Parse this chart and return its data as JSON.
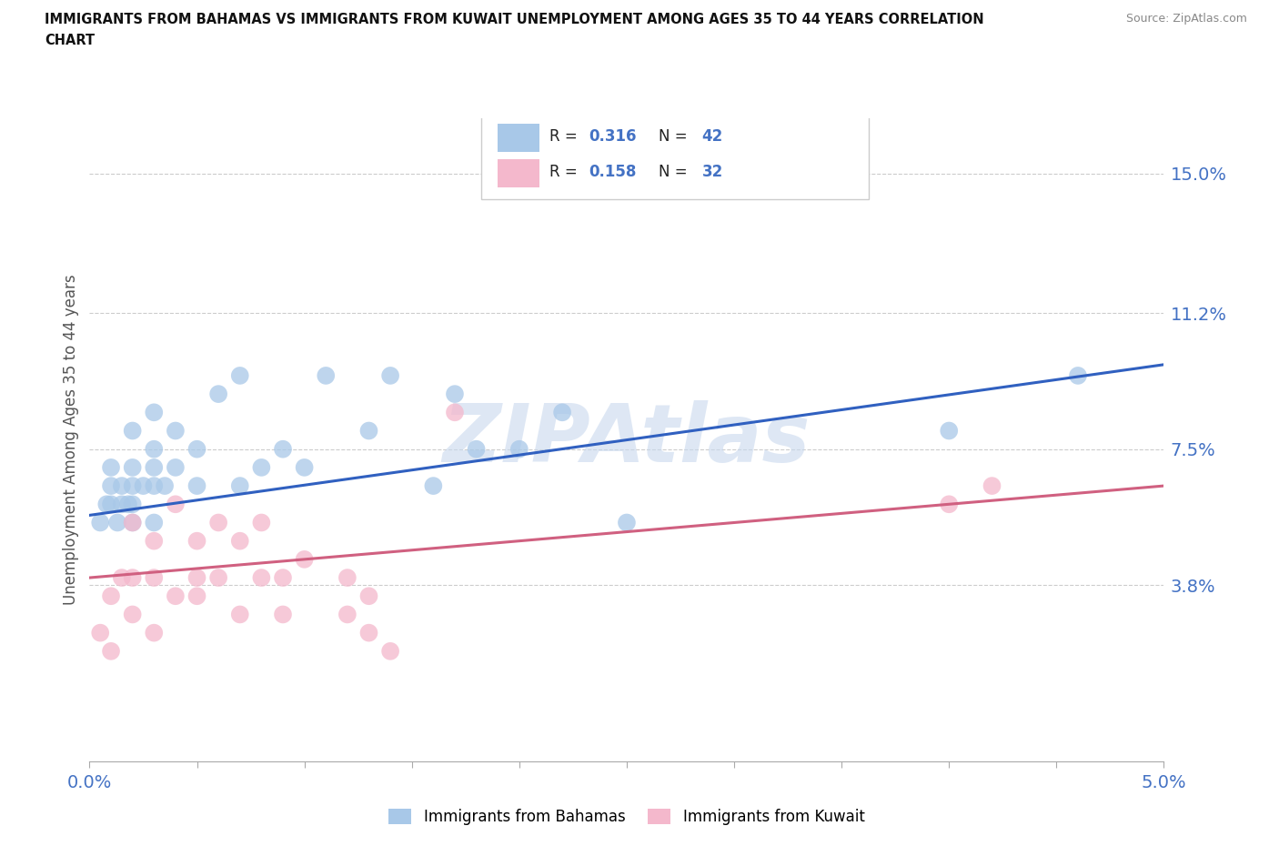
{
  "title_line1": "IMMIGRANTS FROM BAHAMAS VS IMMIGRANTS FROM KUWAIT UNEMPLOYMENT AMONG AGES 35 TO 44 YEARS CORRELATION",
  "title_line2": "CHART",
  "source": "Source: ZipAtlas.com",
  "ylabel": "Unemployment Among Ages 35 to 44 years",
  "xlim": [
    0.0,
    0.05
  ],
  "ylim": [
    -0.01,
    0.165
  ],
  "yticks": [
    0.038,
    0.075,
    0.112,
    0.15
  ],
  "ytick_labels": [
    "3.8%",
    "7.5%",
    "11.2%",
    "15.0%"
  ],
  "xticks": [
    0.0,
    0.005,
    0.01,
    0.015,
    0.02,
    0.025,
    0.03,
    0.035,
    0.04,
    0.045,
    0.05
  ],
  "xtick_labels": [
    "0.0%",
    "",
    "",
    "",
    "",
    "",
    "",
    "",
    "",
    "",
    "5.0%"
  ],
  "bahamas_color": "#a8c8e8",
  "kuwait_color": "#f4b8cc",
  "bahamas_line_color": "#3060c0",
  "kuwait_line_color": "#d06080",
  "watermark_text": "ZIPAtlas",
  "watermark_color": "#c8d8ee",
  "legend_label1": "Immigrants from Bahamas",
  "legend_label2": "Immigrants from Kuwait",
  "bahamas_x": [
    0.0005,
    0.0008,
    0.001,
    0.001,
    0.001,
    0.0013,
    0.0015,
    0.0015,
    0.0018,
    0.002,
    0.002,
    0.002,
    0.002,
    0.002,
    0.0025,
    0.003,
    0.003,
    0.003,
    0.003,
    0.003,
    0.0035,
    0.004,
    0.004,
    0.005,
    0.005,
    0.006,
    0.007,
    0.007,
    0.008,
    0.009,
    0.01,
    0.011,
    0.013,
    0.014,
    0.016,
    0.017,
    0.018,
    0.02,
    0.022,
    0.025,
    0.04,
    0.046
  ],
  "bahamas_y": [
    0.055,
    0.06,
    0.06,
    0.065,
    0.07,
    0.055,
    0.06,
    0.065,
    0.06,
    0.055,
    0.06,
    0.065,
    0.07,
    0.08,
    0.065,
    0.055,
    0.065,
    0.07,
    0.075,
    0.085,
    0.065,
    0.07,
    0.08,
    0.065,
    0.075,
    0.09,
    0.065,
    0.095,
    0.07,
    0.075,
    0.07,
    0.095,
    0.08,
    0.095,
    0.065,
    0.09,
    0.075,
    0.075,
    0.085,
    0.055,
    0.08,
    0.095
  ],
  "kuwait_x": [
    0.0005,
    0.001,
    0.001,
    0.0015,
    0.002,
    0.002,
    0.002,
    0.003,
    0.003,
    0.003,
    0.004,
    0.004,
    0.005,
    0.005,
    0.005,
    0.006,
    0.006,
    0.007,
    0.007,
    0.008,
    0.008,
    0.009,
    0.009,
    0.01,
    0.012,
    0.012,
    0.013,
    0.013,
    0.014,
    0.017,
    0.04,
    0.042
  ],
  "kuwait_y": [
    0.025,
    0.02,
    0.035,
    0.04,
    0.03,
    0.04,
    0.055,
    0.025,
    0.04,
    0.05,
    0.035,
    0.06,
    0.035,
    0.04,
    0.05,
    0.04,
    0.055,
    0.03,
    0.05,
    0.04,
    0.055,
    0.03,
    0.04,
    0.045,
    0.03,
    0.04,
    0.025,
    0.035,
    0.02,
    0.085,
    0.06,
    0.065
  ],
  "bahamas_line_y0": 0.057,
  "bahamas_line_y1": 0.098,
  "kuwait_line_y0": 0.04,
  "kuwait_line_y1": 0.065
}
